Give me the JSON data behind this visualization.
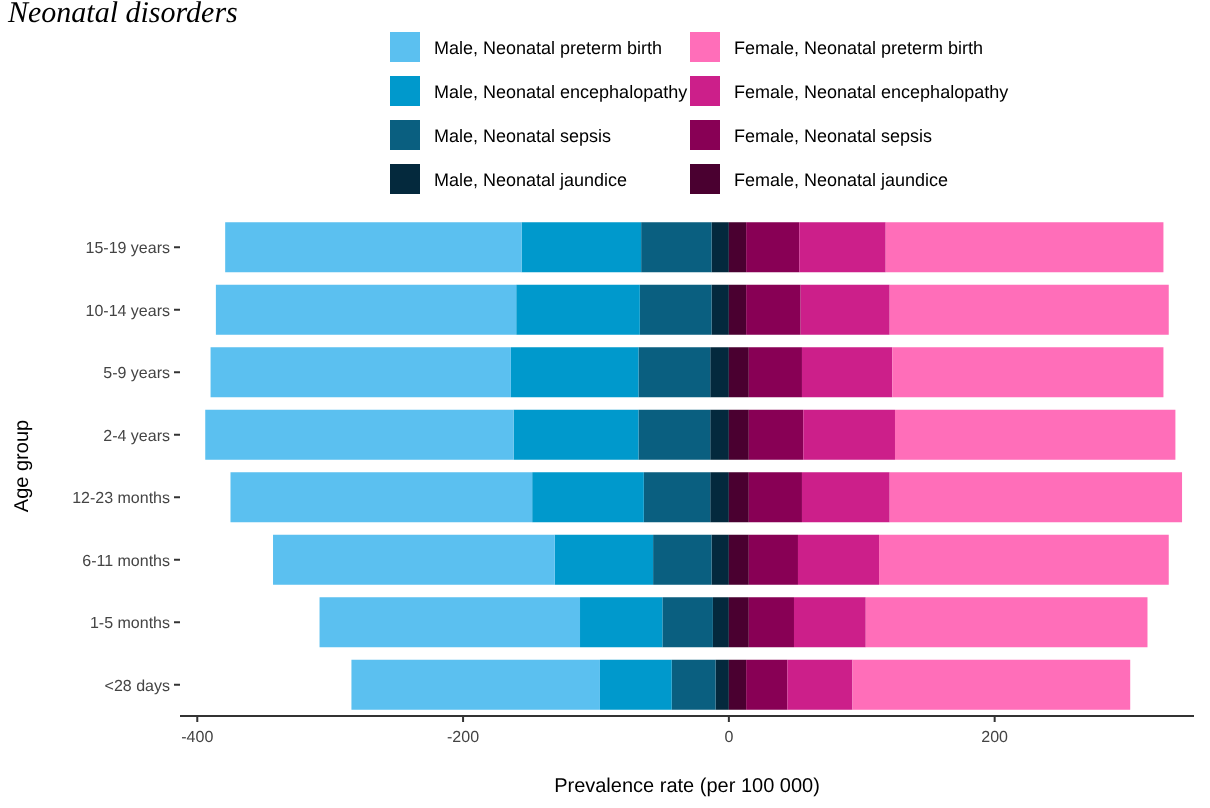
{
  "chart_data": {
    "type": "bar",
    "title": "Neonatal disorders",
    "xlabel": "Prevalence rate (per 100 000)",
    "ylabel": "Age group",
    "orientation": "horizontal",
    "stacked": true,
    "legend": "top",
    "grid": false,
    "categories": [
      "15-19 years",
      "10-14 years",
      "5-9 years",
      "2-4 years",
      "12-23 months",
      "6-11 months",
      "1-5 months",
      "<28 days"
    ],
    "xlim": [
      -413,
      350
    ],
    "xticks": [
      -400,
      -200,
      0,
      200
    ],
    "series": [
      {
        "name": "Male, Neonatal jaundice",
        "color": "#04293d",
        "values": [
          -13,
          -13,
          -14,
          -14,
          -14,
          -13,
          -12,
          -10
        ]
      },
      {
        "name": "Male, Neonatal sepsis",
        "color": "#0a5f80",
        "values": [
          -53,
          -54,
          -54,
          -54,
          -50,
          -44,
          -38,
          -33
        ]
      },
      {
        "name": "Male, Neonatal encephalopathy",
        "color": "#0099cc",
        "values": [
          -90,
          -93,
          -96,
          -94,
          -84,
          -74,
          -62,
          -54
        ]
      },
      {
        "name": "Male, Neonatal preterm birth",
        "color": "#5bc0f0",
        "values": [
          -223,
          -226,
          -226,
          -232,
          -227,
          -212,
          -196,
          -187
        ]
      },
      {
        "name": "Female, Neonatal jaundice",
        "color": "#4a0030",
        "values": [
          13,
          13,
          15,
          15,
          15,
          15,
          15,
          13
        ]
      },
      {
        "name": "Female, Neonatal sepsis",
        "color": "#880055",
        "values": [
          40,
          41,
          40,
          41,
          40,
          37,
          34,
          31
        ]
      },
      {
        "name": "Female, Neonatal encephalopathy",
        "color": "#cc1f8a",
        "values": [
          65,
          67,
          68,
          69,
          66,
          61,
          54,
          49
        ]
      },
      {
        "name": "Female, Neonatal preterm birth",
        "color": "#ff6eb9",
        "values": [
          209,
          210,
          204,
          211,
          220,
          218,
          212,
          209
        ]
      }
    ]
  }
}
